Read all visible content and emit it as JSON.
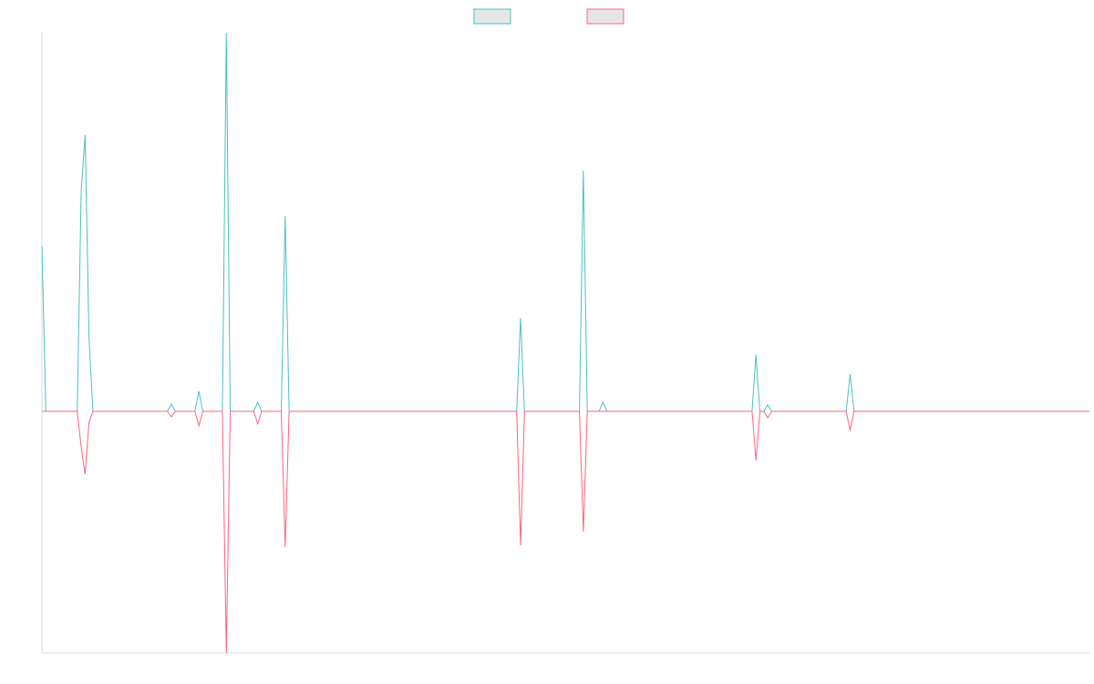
{
  "chart_data": {
    "type": "line",
    "x": [
      0,
      1,
      9,
      10,
      11,
      12,
      13,
      32,
      33,
      34,
      39,
      40,
      41,
      46,
      47,
      48,
      54,
      55,
      56,
      61,
      62,
      63,
      121,
      122,
      123,
      137,
      138,
      139,
      142,
      143,
      144,
      181,
      182,
      183,
      184,
      185,
      186,
      205,
      206,
      207,
      267
    ],
    "xlim": [
      0,
      267
    ],
    "ylim": [
      -265,
      415
    ],
    "series": [
      {
        "color": "#4bc0c0",
        "values": [
          181,
          0,
          0,
          241,
          303,
          81,
          0,
          0,
          8,
          0,
          0,
          22,
          0,
          0,
          415,
          0,
          0,
          10,
          0,
          0,
          214,
          0,
          0,
          102,
          0,
          0,
          264,
          0,
          0,
          10,
          0,
          0,
          62,
          0,
          0,
          7,
          0,
          0,
          41,
          0,
          0
        ]
      },
      {
        "color": "#ff6384",
        "values": [
          0,
          0,
          0,
          -39,
          -69,
          -12,
          0,
          0,
          -6,
          0,
          0,
          -16,
          0,
          0,
          -265,
          0,
          0,
          -14,
          0,
          0,
          -149,
          0,
          0,
          -147,
          0,
          0,
          -132,
          0,
          0,
          0,
          0,
          0,
          -54,
          0,
          0,
          -7,
          0,
          0,
          -21,
          0,
          0
        ]
      }
    ]
  }
}
